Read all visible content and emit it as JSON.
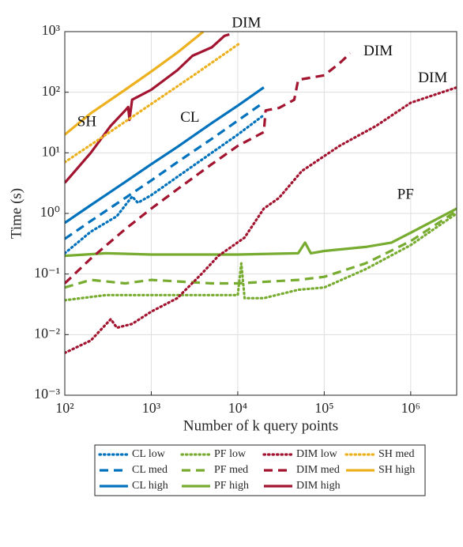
{
  "chart_data": {
    "type": "line",
    "xlabel": "Number of k query points",
    "ylabel": "Time (s)",
    "xscale": "log",
    "yscale": "log",
    "xlim": [
      100,
      3400000
    ],
    "ylim": [
      0.001,
      1000
    ],
    "xticks": [
      {
        "value": 100,
        "label": "10²"
      },
      {
        "value": 1000,
        "label": "10³"
      },
      {
        "value": 10000,
        "label": "10⁴"
      },
      {
        "value": 100000,
        "label": "10⁵"
      },
      {
        "value": 1000000,
        "label": "10⁶"
      }
    ],
    "yticks": [
      {
        "value": 0.001,
        "label": "10⁻³"
      },
      {
        "value": 0.01,
        "label": "10⁻²"
      },
      {
        "value": 0.1,
        "label": "10⁻¹"
      },
      {
        "value": 1,
        "label": "10⁰"
      },
      {
        "value": 10,
        "label": "10¹"
      },
      {
        "value": 100,
        "label": "10²"
      },
      {
        "value": 1000,
        "label": "10³"
      }
    ],
    "grid": true,
    "legend": "south outside",
    "legend_columns": 4,
    "series": [
      {
        "name": "CL low",
        "color": "#0072BD",
        "dash": "dotted",
        "x": [
          100,
          200,
          400,
          600,
          700,
          1000,
          2000,
          5000,
          10000,
          20000
        ],
        "values": [
          0.22,
          0.5,
          0.9,
          1.9,
          1.5,
          2,
          4,
          10,
          20,
          42
        ]
      },
      {
        "name": "CL med",
        "color": "#0072BD",
        "dash": "dashed",
        "x": [
          100,
          200,
          500,
          1000,
          2000,
          5000,
          10000,
          20000
        ],
        "values": [
          0.38,
          0.75,
          1.8,
          3.5,
          7,
          17,
          34,
          68
        ]
      },
      {
        "name": "CL high",
        "color": "#0072BD",
        "dash": "solid",
        "x": [
          100,
          200,
          500,
          1000,
          2000,
          5000,
          10000,
          20000
        ],
        "values": [
          0.7,
          1.37,
          3.3,
          6.5,
          12.5,
          31,
          60,
          120
        ]
      },
      {
        "name": "PF low",
        "color": "#77AC30",
        "dash": "dotted",
        "x": [
          100,
          300,
          1000,
          5000,
          10000,
          11000,
          12000,
          20000,
          50000,
          100000,
          300000,
          1000000,
          3400000
        ],
        "values": [
          0.037,
          0.045,
          0.045,
          0.045,
          0.045,
          0.15,
          0.04,
          0.04,
          0.055,
          0.06,
          0.12,
          0.3,
          1.0
        ]
      },
      {
        "name": "PF med",
        "color": "#77AC30",
        "dash": "dashed",
        "x": [
          100,
          200,
          500,
          1000,
          5000,
          10000,
          50000,
          100000,
          300000,
          1000000,
          3400000
        ],
        "values": [
          0.06,
          0.08,
          0.07,
          0.08,
          0.07,
          0.07,
          0.08,
          0.09,
          0.15,
          0.35,
          1.1
        ]
      },
      {
        "name": "PF high",
        "color": "#77AC30",
        "dash": "solid",
        "x": [
          100,
          300,
          1000,
          10000,
          50000,
          60000,
          70000,
          100000,
          300000,
          600000,
          1000000,
          3400000
        ],
        "values": [
          0.2,
          0.22,
          0.21,
          0.21,
          0.22,
          0.33,
          0.22,
          0.24,
          0.28,
          0.33,
          0.48,
          1.2
        ]
      },
      {
        "name": "DIM low",
        "color": "#A2142F",
        "dash": "dotted",
        "x": [
          100,
          200,
          340,
          400,
          600,
          1000,
          2000,
          3800,
          6000,
          12000,
          20000,
          30000,
          55000,
          150000,
          400000,
          1000000,
          3400000
        ],
        "values": [
          0.005,
          0.008,
          0.018,
          0.013,
          0.015,
          0.024,
          0.04,
          0.1,
          0.2,
          0.4,
          1.2,
          1.8,
          5,
          13,
          28,
          67,
          120
        ]
      },
      {
        "name": "DIM med",
        "color": "#A2142F",
        "dash": "dashed",
        "x": [
          100,
          200,
          500,
          1000,
          2000,
          5000,
          10000,
          20000,
          21000,
          30000,
          45000,
          50000,
          100000,
          150000,
          200000
        ],
        "values": [
          0.07,
          0.18,
          0.55,
          1.2,
          2.5,
          6.5,
          13,
          22,
          50,
          55,
          75,
          160,
          190,
          300,
          440
        ]
      },
      {
        "name": "DIM high",
        "color": "#A2142F",
        "dash": "solid",
        "x": [
          100,
          200,
          340,
          500,
          540,
          560,
          600,
          1000,
          2000,
          3000,
          5000,
          7000,
          8000
        ],
        "values": [
          3.2,
          10,
          28,
          50,
          57,
          35,
          75,
          110,
          230,
          400,
          550,
          850,
          900
        ]
      },
      {
        "name": "SH med",
        "color": "#EDB120",
        "dash": "dotted",
        "x": [
          100,
          300,
          1000,
          3000,
          10500
        ],
        "values": [
          7,
          20,
          64,
          185,
          640
        ]
      },
      {
        "name": "SH high",
        "color": "#EDB120",
        "dash": "solid",
        "x": [
          100,
          200,
          500,
          1000,
          2000,
          4000
        ],
        "values": [
          20,
          45,
          110,
          220,
          450,
          1000
        ]
      }
    ],
    "annotations": [
      {
        "text": "SH",
        "x": 180,
        "y": 31.6
      },
      {
        "text": "CL",
        "x": 2800,
        "y": 37
      },
      {
        "text": "DIM",
        "x": 12600,
        "y": 1350
      },
      {
        "text": "DIM",
        "x": 420000,
        "y": 460
      },
      {
        "text": "DIM",
        "x": 1800000,
        "y": 166
      },
      {
        "text": "PF",
        "x": 870000,
        "y": 2.0
      }
    ]
  }
}
